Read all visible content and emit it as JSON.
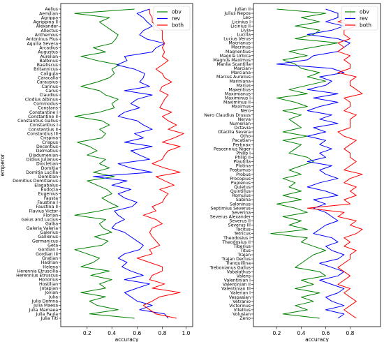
{
  "chart_data": [
    {
      "type": "line",
      "orientation": "horizontal",
      "xlabel": "accuracy",
      "ylabel": "emperor",
      "xlim": [
        0.0,
        1.0
      ],
      "xticks": [
        "0.2",
        "0.4",
        "0.6",
        "0.8",
        "1.0"
      ],
      "legend": {
        "position": "top-right",
        "entries": [
          "obv",
          "rev",
          "both"
        ]
      },
      "colors": {
        "obv": "#008000",
        "rev": "#0000ff",
        "both": "#ff0000"
      },
      "categories": [
        "Aelius",
        "Aemilian",
        "Agrippa",
        "Agrippina II",
        "Alexander",
        "Allectus",
        "Anthemius",
        "Antoninus Pius",
        "Aquilia Severa",
        "Arcadius",
        "Augustus",
        "Aurelian",
        "Balbinus",
        "Basiliscus",
        "Britannicus",
        "Caligula",
        "Caracalla",
        "Carausius",
        "Carinus",
        "Carus",
        "Claudius",
        "Clodius Albinus",
        "Commodus",
        "Constans",
        "Constantine I",
        "Constantine II",
        "Constantius Gallus",
        "Constantius I",
        "Constantius II",
        "Constantius III",
        "Crispina",
        "Crispus",
        "Decentius",
        "Delmatius",
        "Diadumenian",
        "Didius Julianus",
        "Diocletian",
        "Domitia",
        "Domitia Lucilla",
        "Domitian",
        "Domitius Domitianus",
        "Elagabalus",
        "Eudocia",
        "Eugenius",
        "Fausta",
        "Faustina I",
        "Faustina II",
        "Flavius Victor",
        "Florian",
        "Gaius and Lucius",
        "Galba",
        "Galeria Valeria",
        "Galerius",
        "Gallienus",
        "Germanicus",
        "Geta",
        "Gordian I",
        "Gordian III",
        "Gratian",
        "Hadrian",
        "Helena",
        "Herennia Etruscilla",
        "Herennius Etruscus",
        "Honorius",
        "Hostilian",
        "Jotapian",
        "Jovian",
        "Julia",
        "Julia Domna",
        "Julia Maesa",
        "Julia Mamaea",
        "Julia Paula",
        "Julia Titi"
      ],
      "series": [
        {
          "name": "obv",
          "values": [
            0.58,
            0.1,
            0.38,
            0.3,
            0.35,
            0.4,
            0.45,
            0.43,
            0.4,
            0.25,
            0.35,
            0.15,
            0.28,
            0.46,
            0.4,
            0.42,
            0.38,
            0.28,
            0.15,
            0.3,
            0.35,
            0.45,
            0.4,
            0.42,
            0.3,
            0.1,
            0.32,
            0.38,
            0.3,
            0.35,
            0.32,
            0.12,
            0.22,
            0.28,
            0.2,
            0.35,
            0.3,
            0.38,
            0.25,
            0.42,
            0.2,
            0.28,
            0.36,
            0.4,
            0.32,
            0.38,
            0.45,
            0.3,
            0.1,
            0.35,
            0.3,
            0.33,
            0.4,
            0.26,
            0.37,
            0.32,
            0.1,
            0.2,
            0.3,
            0.25,
            0.15,
            0.38,
            0.23,
            0.4,
            0.3,
            0.35,
            0.15,
            0.35,
            0.22,
            0.28,
            0.45,
            0.22,
            0.58
          ]
        },
        {
          "name": "rev",
          "values": [
            0.7,
            0.6,
            0.65,
            0.68,
            0.72,
            0.65,
            0.62,
            0.68,
            0.82,
            0.75,
            0.72,
            0.5,
            0.52,
            0.44,
            0.58,
            0.66,
            0.65,
            0.62,
            0.7,
            0.5,
            0.72,
            0.6,
            0.55,
            0.62,
            0.5,
            0.45,
            0.6,
            0.65,
            0.72,
            0.58,
            0.65,
            0.5,
            0.72,
            0.55,
            0.62,
            0.7,
            0.45,
            0.55,
            0.72,
            0.25,
            0.52,
            0.4,
            0.55,
            0.45,
            0.5,
            0.6,
            0.56,
            0.42,
            0.45,
            0.5,
            0.43,
            0.4,
            0.5,
            0.55,
            0.6,
            0.65,
            0.62,
            0.5,
            0.45,
            0.52,
            0.48,
            0.55,
            0.65,
            0.5,
            0.7,
            0.6,
            0.5,
            0.55,
            0.6,
            0.72,
            0.62,
            0.82,
            0.85
          ]
        },
        {
          "name": "both",
          "values": [
            0.7,
            0.7,
            0.72,
            0.72,
            0.75,
            0.8,
            0.8,
            0.8,
            0.82,
            0.8,
            0.82,
            0.8,
            0.85,
            0.8,
            0.75,
            0.8,
            0.82,
            0.88,
            0.8,
            0.78,
            0.85,
            0.82,
            0.8,
            0.78,
            0.88,
            0.8,
            0.85,
            0.92,
            0.85,
            0.98,
            0.9,
            0.8,
            0.95,
            0.85,
            0.82,
            0.8,
            0.72,
            0.82,
            0.95,
            0.75,
            0.82,
            0.9,
            0.78,
            0.85,
            0.82,
            0.8,
            0.72,
            0.75,
            0.65,
            0.75,
            0.8,
            0.72,
            0.7,
            0.72,
            0.75,
            0.78,
            0.7,
            0.72,
            0.6,
            0.7,
            0.8,
            0.8,
            0.72,
            0.7,
            0.82,
            0.72,
            0.95,
            0.78,
            0.72,
            0.65,
            0.7,
            0.75,
            0.92
          ]
        }
      ]
    },
    {
      "type": "line",
      "orientation": "horizontal",
      "xlabel": "accuracy",
      "ylabel": "",
      "xlim": [
        0.0,
        1.0
      ],
      "xticks": [
        "0.2",
        "0.4",
        "0.6",
        "0.8"
      ],
      "legend": {
        "position": "top-right",
        "entries": [
          "obv",
          "rev",
          "both"
        ]
      },
      "colors": {
        "obv": "#008000",
        "rev": "#0000ff",
        "both": "#ff0000"
      },
      "categories": [
        "Julian II",
        "Julius Nepos",
        "Leo",
        "Licinius I",
        "Licinius II",
        "Livia",
        "Lucilla",
        "Lucius Verus",
        "Macrianus",
        "Macrinus",
        "Magnentius",
        "Magnia Urbica",
        "Magnus Maximus",
        "Manlia Scantilla",
        "Marcian",
        "Marciana",
        "Marcus Aurelius",
        "Mariniana",
        "Marius",
        "Maxentius",
        "Maximianus",
        "Maximinus I",
        "Maximinus II",
        "Maximus",
        "Nero",
        "Nero Claudius Drusus",
        "Nerva",
        "Numerian",
        "Octavia",
        "Otacilia Severa",
        "Otho",
        "Pacatian",
        "Pertinax",
        "Pescennius Niger",
        "Philip I",
        "Philip II",
        "Plautilla",
        "Plotina",
        "Postumus",
        "Probus",
        "Procopius",
        "Pupienus",
        "Quietus",
        "Quintillus",
        "Romulus",
        "Sabina",
        "Saloninus",
        "Septimius Severus",
        "Severina",
        "Severus Alexander",
        "Severus II",
        "Severus III",
        "Tacitus",
        "Tetricus",
        "Theodosius I",
        "Theodosius II",
        "Tiberius",
        "Titus",
        "Trajan",
        "Trajan Decius",
        "Tranquillina",
        "Trebonianus Gallus",
        "Vabalathus",
        "Valens",
        "Valentinian I",
        "Valentinian II",
        "Valentinian III",
        "Valerian I",
        "Vespasian",
        "Vetranio",
        "Victorinus",
        "Vitellius",
        "Volusian",
        "Zeno"
      ],
      "series": [
        {
          "name": "obv",
          "values": [
            0.2,
            0.6,
            0.4,
            0.55,
            0.35,
            0.55,
            0.5,
            0.35,
            0.7,
            0.5,
            0.3,
            0.45,
            0.25,
            0.35,
            0.4,
            0.55,
            0.45,
            0.6,
            0.45,
            0.3,
            0.45,
            0.2,
            0.35,
            0.45,
            0.25,
            0.4,
            0.3,
            0.35,
            0.4,
            0.25,
            0.45,
            0.25,
            0.4,
            0.35,
            0.3,
            0.45,
            0.5,
            0.4,
            0.3,
            0.4,
            0.25,
            0.35,
            0.3,
            0.4,
            0.25,
            0.4,
            0.2,
            0.35,
            0.45,
            0.25,
            0.4,
            0.3,
            0.45,
            0.15,
            0.45,
            0.4,
            0.5,
            0.6,
            0.5,
            0.45,
            0.4,
            0.35,
            0.55,
            0.6,
            0.4,
            0.5,
            0.35,
            0.55,
            0.4,
            0.5,
            0.35,
            0.45,
            0.25,
            0.55
          ]
        },
        {
          "name": "rev",
          "values": [
            0.6,
            0.7,
            0.7,
            0.6,
            0.75,
            0.65,
            0.45,
            0.7,
            0.8,
            0.75,
            0.7,
            0.5,
            0.45,
            0.2,
            0.65,
            0.75,
            0.55,
            0.65,
            0.6,
            0.45,
            0.7,
            0.5,
            0.7,
            0.55,
            0.45,
            0.65,
            0.55,
            0.7,
            0.5,
            0.6,
            0.45,
            0.6,
            0.55,
            0.65,
            0.55,
            0.6,
            0.45,
            0.65,
            0.55,
            0.6,
            0.7,
            0.55,
            0.45,
            0.6,
            0.7,
            0.5,
            0.6,
            0.5,
            0.6,
            0.65,
            0.7,
            0.6,
            0.55,
            0.5,
            0.65,
            0.7,
            0.6,
            0.65,
            0.75,
            0.7,
            0.55,
            0.65,
            0.75,
            0.7,
            0.55,
            0.65,
            0.75,
            0.7,
            0.6,
            0.65,
            0.75,
            0.6,
            0.75,
            0.7
          ]
        },
        {
          "name": "both",
          "values": [
            0.8,
            0.8,
            0.8,
            0.7,
            0.85,
            0.75,
            0.75,
            0.8,
            0.7,
            0.75,
            0.7,
            0.8,
            0.75,
            0.8,
            0.8,
            0.7,
            0.85,
            0.8,
            0.8,
            0.85,
            0.9,
            0.75,
            0.8,
            0.8,
            0.75,
            0.85,
            0.8,
            0.8,
            0.8,
            0.7,
            0.75,
            0.85,
            0.8,
            0.75,
            0.8,
            0.8,
            0.85,
            0.8,
            0.75,
            0.9,
            0.8,
            0.75,
            0.85,
            0.8,
            0.85,
            0.75,
            0.8,
            0.45,
            0.75,
            0.7,
            0.85,
            0.8,
            0.9,
            0.85,
            0.75,
            0.8,
            0.75,
            0.85,
            0.8,
            0.8,
            0.75,
            0.7,
            0.75,
            0.8,
            0.75,
            0.7,
            0.8,
            0.75,
            0.8,
            0.85,
            0.8,
            0.75,
            0.8,
            0.85
          ]
        }
      ]
    }
  ]
}
